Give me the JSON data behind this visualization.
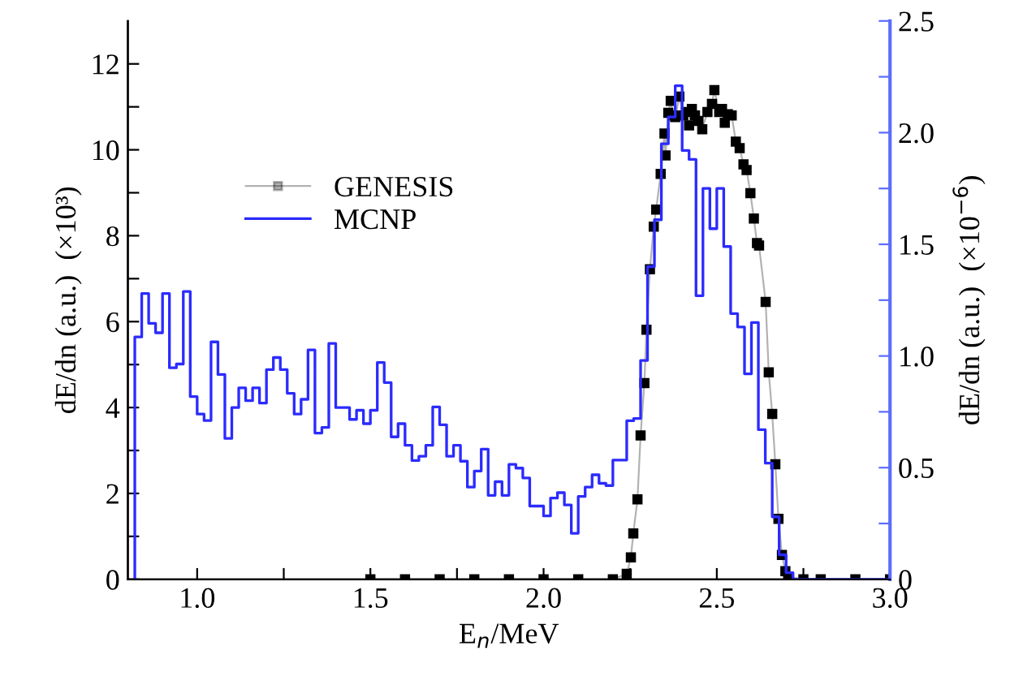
{
  "chart_data": {
    "type": "line",
    "xlabel": "E$_{n}$/MeV",
    "ylabel": "dE/dn (a.u.)  (×10³)",
    "y2label": "dE/dn (a.u.)  (×10$^{−6}$)",
    "xlim": [
      0.8,
      3.0
    ],
    "xticks": [
      {
        "value": 1.0,
        "label": "1.0"
      },
      {
        "value": 1.25,
        "label": null
      },
      {
        "value": 1.5,
        "label": "1.5"
      },
      {
        "value": 1.75,
        "label": null
      },
      {
        "value": 2.0,
        "label": "2.0"
      },
      {
        "value": 2.25,
        "label": null
      },
      {
        "value": 2.5,
        "label": "2.5"
      },
      {
        "value": 2.75,
        "label": null
      },
      {
        "value": 3.0,
        "label": "3.0"
      }
    ],
    "ylim": [
      0,
      13
    ],
    "yticks": [
      0,
      {
        "value": 1,
        "label": null
      },
      2,
      {
        "value": 3,
        "label": null
      },
      4,
      {
        "value": 5,
        "label": null
      },
      6,
      {
        "value": 7,
        "label": null
      },
      8,
      {
        "value": 9,
        "label": null
      },
      10,
      {
        "value": 11,
        "label": null
      },
      12
    ],
    "y2lim": [
      0,
      2.5
    ],
    "y2ticks": [
      0,
      {
        "value": 0.25,
        "label": null
      },
      0.5,
      {
        "value": 0.75,
        "label": null
      },
      {
        "value": 1.0,
        "label": "1.0"
      },
      {
        "value": 1.25,
        "label": null
      },
      1.5,
      {
        "value": 1.75,
        "label": null
      },
      {
        "value": 2.0,
        "label": "2.0"
      },
      {
        "value": 2.25,
        "label": null
      },
      2.5
    ],
    "legend": "top left",
    "grid": false,
    "series": [
      {
        "name": "GENESIS",
        "color": "#000000",
        "marker": "square",
        "x": [
          1.5,
          1.6,
          1.7,
          1.8,
          1.9,
          2.0,
          2.1,
          2.2,
          2.24,
          2.252,
          2.259,
          2.271,
          2.28,
          2.291,
          2.297,
          2.307,
          2.318,
          2.325,
          2.338,
          2.349,
          2.352,
          2.36,
          2.367,
          2.374,
          2.38,
          2.392,
          2.403,
          2.411,
          2.42,
          2.428,
          2.437,
          2.447,
          2.458,
          2.473,
          2.486,
          2.493,
          2.507,
          2.515,
          2.523,
          2.532,
          2.543,
          2.555,
          2.566,
          2.577,
          2.586,
          2.597,
          2.607,
          2.616,
          2.622,
          2.641,
          2.65,
          2.66,
          2.669,
          2.678,
          2.688,
          2.698,
          2.706,
          2.75,
          2.8,
          2.9,
          3.0
        ],
        "values": [
          0,
          0,
          0,
          0,
          0,
          0,
          0,
          0,
          0.13,
          0.51,
          1.07,
          1.86,
          3.35,
          4.57,
          5.81,
          7.22,
          8.21,
          8.61,
          9.44,
          10.38,
          9.87,
          10.86,
          11.14,
          10.8,
          10.76,
          11.24,
          10.8,
          10.88,
          10.57,
          10.95,
          10.8,
          10.67,
          10.48,
          10.88,
          11.07,
          11.39,
          10.88,
          10.95,
          10.63,
          10.83,
          10.8,
          10.19,
          10.04,
          9.66,
          9.53,
          8.99,
          8.4,
          7.83,
          7.77,
          6.46,
          4.82,
          3.85,
          2.68,
          1.41,
          0.57,
          0.19,
          0.06,
          0,
          0,
          0,
          0
        ]
      },
      {
        "name": "MCNP",
        "type": "step",
        "axis": "y2",
        "color": "#2b2bff",
        "x": [
          0.82,
          0.82,
          0.84,
          0.86,
          0.88,
          0.9,
          0.92,
          0.94,
          0.96,
          0.98,
          1.0,
          1.02,
          1.04,
          1.06,
          1.08,
          1.1,
          1.12,
          1.14,
          1.16,
          1.18,
          1.2,
          1.22,
          1.24,
          1.26,
          1.28,
          1.3,
          1.32,
          1.34,
          1.36,
          1.38,
          1.4,
          1.42,
          1.44,
          1.46,
          1.48,
          1.5,
          1.52,
          1.54,
          1.56,
          1.58,
          1.6,
          1.62,
          1.64,
          1.66,
          1.68,
          1.7,
          1.72,
          1.74,
          1.76,
          1.78,
          1.8,
          1.82,
          1.84,
          1.86,
          1.88,
          1.9,
          1.92,
          1.94,
          1.96,
          1.98,
          2.0,
          2.02,
          2.04,
          2.06,
          2.08,
          2.1,
          2.12,
          2.14,
          2.16,
          2.18,
          2.2,
          2.22,
          2.24,
          2.26,
          2.28,
          2.3,
          2.32,
          2.34,
          2.36,
          2.38,
          2.4,
          2.42,
          2.44,
          2.46,
          2.48,
          2.5,
          2.52,
          2.54,
          2.56,
          2.58,
          2.6,
          2.62,
          2.64,
          2.66,
          2.68,
          2.7,
          2.72,
          3.0
        ],
        "values": [
          0,
          1.085,
          1.28,
          1.146,
          1.104,
          1.28,
          0.947,
          0.964,
          1.289,
          0.818,
          0.74,
          0.711,
          1.063,
          0.917,
          0.631,
          0.769,
          0.857,
          0.8,
          0.857,
          0.789,
          0.939,
          0.993,
          0.939,
          0.833,
          0.74,
          0.806,
          1.027,
          0.655,
          0.68,
          1.056,
          0.769,
          0.769,
          0.716,
          0.757,
          0.697,
          0.757,
          0.971,
          0.881,
          0.638,
          0.697,
          0.6,
          0.532,
          0.551,
          0.6,
          0.772,
          0.692,
          0.551,
          0.6,
          0.529,
          0.413,
          0.485,
          0.583,
          0.376,
          0.437,
          0.376,
          0.515,
          0.498,
          0.454,
          0.328,
          0.328,
          0.284,
          0.364,
          0.388,
          0.333,
          0.206,
          0.371,
          0.413,
          0.468,
          0.43,
          0.42,
          0.534,
          0.534,
          0.71,
          0.72,
          0.98,
          1.4,
          1.61,
          1.95,
          2.07,
          2.21,
          1.92,
          1.88,
          1.27,
          1.75,
          1.57,
          1.75,
          1.49,
          1.19,
          1.13,
          0.92,
          1.15,
          0.67,
          0.52,
          0.28,
          0.11,
          0.03,
          0,
          0
        ]
      }
    ]
  }
}
